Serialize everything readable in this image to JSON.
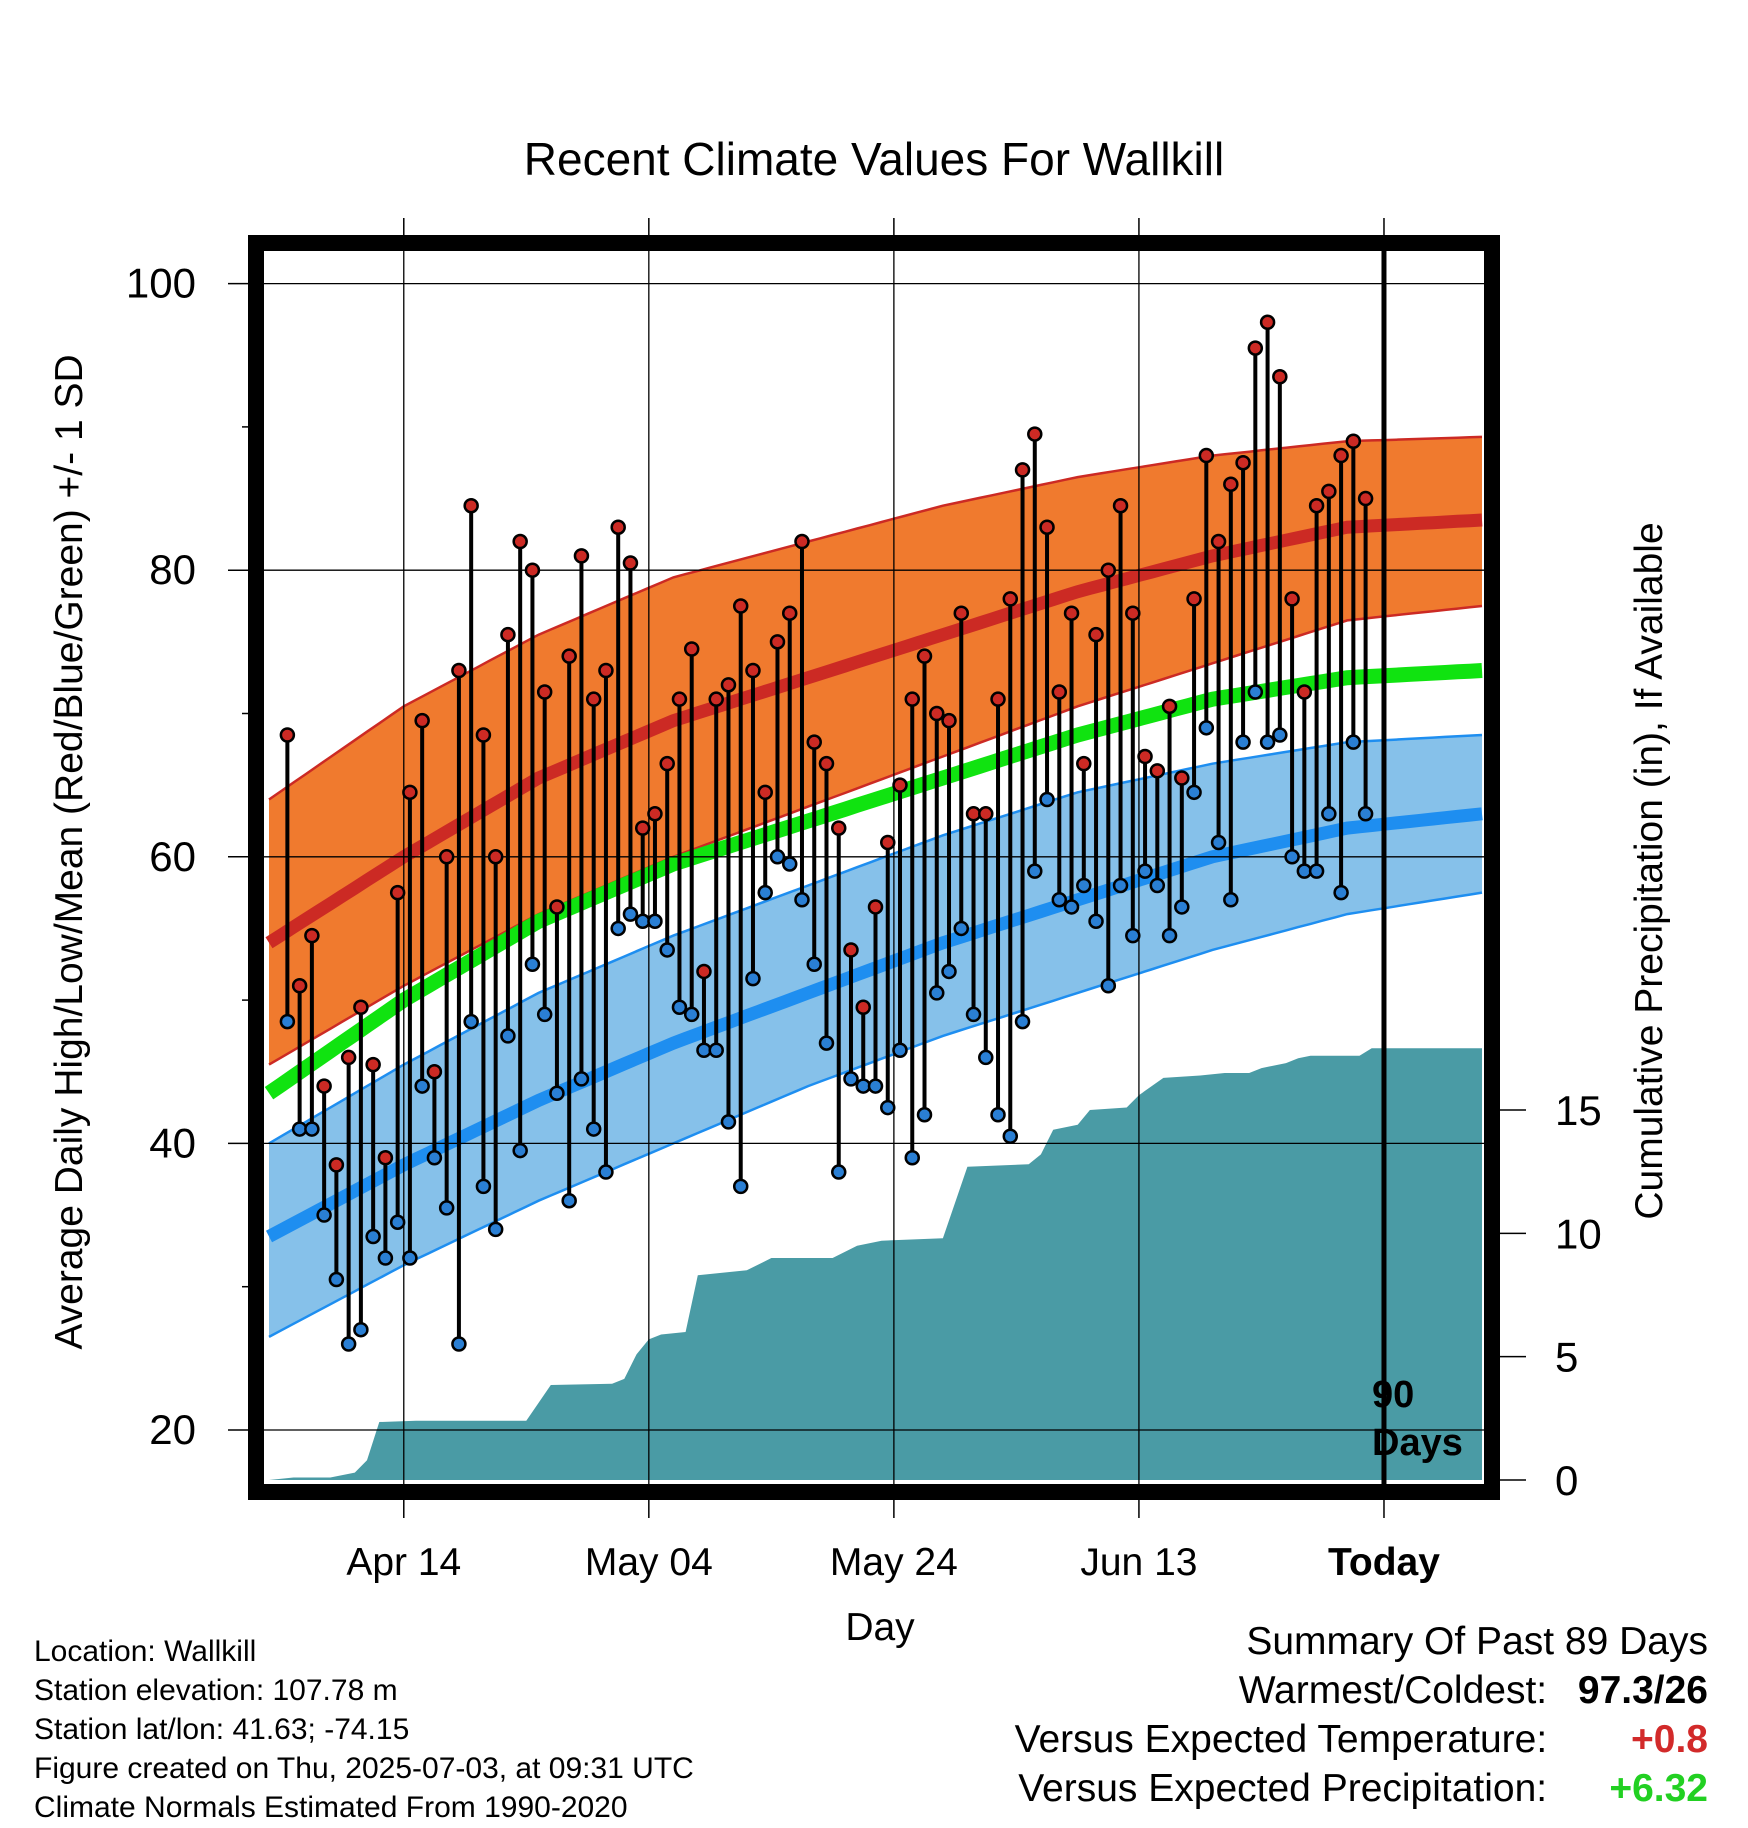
{
  "chart_data": {
    "type": "line",
    "title": "Recent Climate Values For Wallkill",
    "xlabel": "Day",
    "ylabel": "Average Daily High/Low/Mean (Red/Blue/Green) +/- 1 SD",
    "y2label": "Cumulative Precipitation (in), If Available",
    "ylim": [
      15.5,
      103.5
    ],
    "y2lim": [
      0,
      20.8
    ],
    "x_ticks": [
      "Apr 14",
      "May 04",
      "May 24",
      "Jun 13",
      "Today"
    ],
    "yticks": [
      20,
      40,
      60,
      80,
      100
    ],
    "y2ticks": [
      0,
      5,
      10,
      15
    ],
    "today_marker": "90 Days",
    "normals": {
      "high_mean": [
        54,
        60,
        65.5,
        69.5,
        72.5,
        75.5,
        78.5,
        81,
        83,
        83.5
      ],
      "high_upper": [
        64,
        70.5,
        75.5,
        79.5,
        82,
        84.5,
        86.5,
        88,
        89,
        89.3
      ],
      "high_lower": [
        45.5,
        51,
        56,
        60,
        63.5,
        67,
        70.5,
        73.5,
        76.5,
        77.5
      ],
      "mean": [
        43.5,
        50,
        55.5,
        59.5,
        62.5,
        65.5,
        68.5,
        71,
        72.5,
        73
      ],
      "low_mean": [
        33.5,
        38.5,
        43,
        47,
        50.5,
        54,
        57,
        60,
        62,
        63
      ],
      "low_upper": [
        40,
        45.5,
        50.5,
        54.5,
        58,
        61.5,
        64.5,
        66.5,
        68,
        68.5
      ],
      "low_lower": [
        26.5,
        31.5,
        36,
        40,
        44,
        47.5,
        50.5,
        53.5,
        56,
        57.5
      ]
    },
    "highs": [
      68.5,
      51,
      54.5,
      44,
      38.5,
      46,
      49.5,
      45.5,
      39,
      57.5,
      64.5,
      69.5,
      45,
      60,
      73,
      84.5,
      68.5,
      60,
      75.5,
      82,
      80,
      71.5,
      56.5,
      74,
      81,
      71,
      73,
      83,
      80.5,
      62,
      63,
      66.5,
      71,
      74.5,
      52,
      71,
      72,
      77.5,
      73,
      64.5,
      75,
      77,
      82,
      68,
      66.5,
      62,
      53.5,
      49.5,
      56.5,
      61,
      65,
      71,
      74,
      70,
      69.5,
      77,
      63,
      63,
      71,
      78,
      87,
      89.5,
      83,
      71.5,
      77,
      66.5,
      75.5,
      80,
      84.5,
      77,
      67,
      66,
      70.5,
      65.5,
      78,
      88,
      82,
      86,
      87.5,
      95.5,
      97.3,
      93.5,
      78,
      71.5,
      84.5,
      85.5,
      88,
      89,
      85
    ],
    "lows": [
      48.5,
      41,
      41,
      35,
      30.5,
      26,
      27,
      33.5,
      32,
      34.5,
      32,
      44,
      39,
      35.5,
      26,
      48.5,
      37,
      34,
      47.5,
      39.5,
      52.5,
      49,
      43.5,
      36,
      44.5,
      41,
      38,
      55,
      56,
      55.5,
      55.5,
      53.5,
      49.5,
      49,
      46.5,
      46.5,
      41.5,
      37,
      51.5,
      57.5,
      60,
      59.5,
      57,
      52.5,
      47,
      38,
      44.5,
      44,
      44,
      42.5,
      46.5,
      39,
      42,
      50.5,
      52,
      55,
      49,
      46,
      42,
      40.5,
      48.5,
      59,
      64,
      57,
      56.5,
      58,
      55.5,
      51,
      58,
      54.5,
      59,
      58,
      54.5,
      56.5,
      64.5,
      69,
      61,
      57,
      68,
      71.5,
      68,
      68.5,
      60,
      59,
      59,
      63,
      57.5,
      68,
      63
    ],
    "precip_cumulative": [
      [
        0,
        0
      ],
      [
        2,
        0.1
      ],
      [
        5,
        0.1
      ],
      [
        7,
        0.3
      ],
      [
        8,
        0.8
      ],
      [
        9,
        2.35
      ],
      [
        12,
        2.4
      ],
      [
        21,
        2.4
      ],
      [
        23,
        3.85
      ],
      [
        28,
        3.9
      ],
      [
        29,
        4.1
      ],
      [
        30,
        5.1
      ],
      [
        31,
        5.7
      ],
      [
        32,
        5.9
      ],
      [
        34,
        6
      ],
      [
        35,
        8.3
      ],
      [
        39,
        8.5
      ],
      [
        41,
        9
      ],
      [
        46,
        9
      ],
      [
        48,
        9.5
      ],
      [
        50,
        9.7
      ],
      [
        55,
        9.8
      ],
      [
        57,
        12.7
      ],
      [
        62,
        12.8
      ],
      [
        63,
        13.2
      ],
      [
        64,
        14.2
      ],
      [
        66,
        14.4
      ],
      [
        67,
        15
      ],
      [
        70,
        15.1
      ],
      [
        71,
        15.6
      ],
      [
        73,
        16.3
      ],
      [
        76,
        16.4
      ],
      [
        78,
        16.5
      ],
      [
        80,
        16.5
      ],
      [
        81,
        16.7
      ],
      [
        83,
        16.9
      ],
      [
        84,
        17.1
      ],
      [
        85,
        17.2
      ],
      [
        89,
        17.2
      ],
      [
        90,
        17.5
      ],
      [
        99,
        17.5
      ]
    ]
  },
  "summary": {
    "heading": "Summary Of Past 89 Days",
    "rows": [
      {
        "label": "Warmest/Coldest:",
        "value": "97.3/26",
        "color": "#000000"
      },
      {
        "label": "Versus Expected Temperature:",
        "value": "+0.8",
        "color": "#d22a2a"
      },
      {
        "label": "Versus Expected Precipitation:",
        "value": "+6.32",
        "color": "#22d022"
      }
    ]
  },
  "meta": {
    "location": "Location: Wallkill",
    "elevation": "Station elevation: 107.78 m",
    "latlon": "Station lat/lon: 41.63; -74.15",
    "created": "Figure created on Thu, 2025-07-03, at 09:31 UTC",
    "normals": "Climate Normals Estimated From 1990-2020"
  },
  "colors": {
    "high_band": "#f07a2e",
    "high_line": "#cc2a24",
    "mean_line": "#10e310",
    "low_band": "#86c1ea",
    "low_line": "#1e8ef0",
    "precip_fill": "#4a9ba5",
    "high_point": "#cc2a24",
    "low_point": "#2a7fd4"
  }
}
